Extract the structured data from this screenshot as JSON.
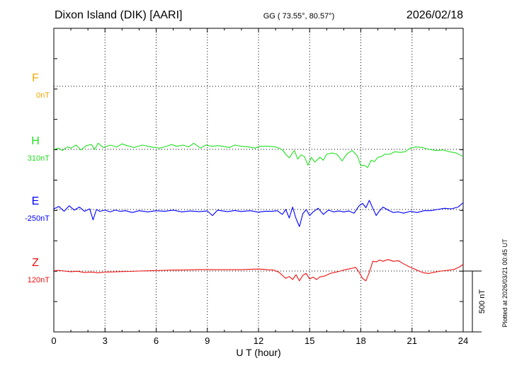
{
  "header": {
    "station": "Dixon Island (DIK)  [AARI]",
    "coords": "GG ( 73.55°,  80.57°)",
    "date": "2026/02/18"
  },
  "footer": {
    "xlabel": "U T (hour)",
    "plotted": "Plotted at 2026/03/21 00:45 UT",
    "scale_label": "500 nT"
  },
  "chart_data": {
    "type": "line",
    "xlabel": "U T (hour)",
    "x_range": [
      0,
      24
    ],
    "x_ticks": [
      "0",
      "3",
      "6",
      "9",
      "12",
      "15",
      "18",
      "21",
      "24"
    ],
    "grid": true,
    "scale_bar_nT": 500,
    "series": [
      {
        "name": "F",
        "baseline_label": "0nT",
        "color": "#f0a800",
        "baseline_nT": 0,
        "x": [],
        "y": []
      },
      {
        "name": "H",
        "baseline_label": "310nT",
        "color": "#22e022",
        "baseline_nT": 310,
        "x": [
          0,
          0.3,
          0.5,
          0.8,
          1,
          1.3,
          1.6,
          1.9,
          2.2,
          2.4,
          2.6,
          2.9,
          3.3,
          3.7,
          4,
          4.3,
          4.7,
          5.2,
          5.7,
          6.2,
          6.5,
          6.9,
          7.2,
          7.6,
          7.9,
          8.2,
          8.6,
          8.9,
          9.3,
          9.6,
          9.9,
          10.3,
          10.6,
          11,
          11.4,
          11.8,
          12.1,
          12.6,
          13,
          13.2,
          13.4,
          13.6,
          13.8,
          14.1,
          14.3,
          14.5,
          14.7,
          14.9,
          15.1,
          15.3,
          15.6,
          15.8,
          16,
          16.3,
          16.6,
          16.9,
          17.2,
          17.5,
          17.8,
          18,
          18.2,
          18.4,
          18.6,
          18.8,
          19,
          19.2,
          19.4,
          19.7,
          20,
          20.3,
          20.6,
          20.9,
          21.2,
          21.6,
          22,
          22.4,
          22.8,
          23.2,
          23.6,
          24
        ],
        "y": [
          310,
          320,
          300,
          330,
          320,
          345,
          305,
          340,
          350,
          310,
          360,
          325,
          345,
          330,
          355,
          340,
          325,
          345,
          330,
          320,
          330,
          350,
          335,
          345,
          330,
          360,
          320,
          345,
          335,
          340,
          335,
          325,
          345,
          335,
          330,
          320,
          335,
          335,
          330,
          320,
          305,
          270,
          240,
          300,
          230,
          265,
          250,
          180,
          245,
          205,
          245,
          220,
          270,
          280,
          270,
          215,
          275,
          300,
          255,
          175,
          180,
          160,
          220,
          210,
          245,
          250,
          270,
          270,
          290,
          285,
          290,
          320,
          330,
          325,
          310,
          300,
          305,
          290,
          280,
          250
        ]
      },
      {
        "name": "E",
        "baseline_label": "-250nT",
        "color": "#0000ff",
        "baseline_nT": -250,
        "x": [
          0,
          0.3,
          0.6,
          0.9,
          1.2,
          1.5,
          1.8,
          2.1,
          2.3,
          2.5,
          2.7,
          3,
          3.3,
          3.6,
          3.9,
          4.2,
          4.6,
          5,
          5.5,
          6,
          6.5,
          7,
          7.5,
          8,
          8.5,
          9,
          9.3,
          9.6,
          9.9,
          10.2,
          10.6,
          11,
          11.5,
          12,
          12.4,
          12.8,
          13.1,
          13.4,
          13.6,
          13.8,
          14,
          14.2,
          14.4,
          14.6,
          14.8,
          15,
          15.2,
          15.5,
          15.8,
          16.1,
          16.4,
          16.7,
          17,
          17.3,
          17.6,
          17.9,
          18.1,
          18.3,
          18.5,
          18.7,
          18.9,
          19.1,
          19.3,
          19.6,
          19.9,
          20.2,
          20.5,
          20.9,
          21.3,
          21.7,
          22.1,
          22.5,
          22.9,
          23.3,
          23.7,
          24
        ],
        "y": [
          -245,
          -225,
          -265,
          -220,
          -255,
          -230,
          -265,
          -245,
          -335,
          -250,
          -265,
          -255,
          -270,
          -255,
          -265,
          -260,
          -275,
          -260,
          -270,
          -260,
          -265,
          -255,
          -270,
          -262,
          -268,
          -262,
          -300,
          -255,
          -262,
          -268,
          -258,
          -266,
          -260,
          -272,
          -264,
          -265,
          -260,
          -290,
          -250,
          -320,
          -230,
          -325,
          -390,
          -285,
          -250,
          -300,
          -270,
          -240,
          -290,
          -255,
          -270,
          -262,
          -270,
          -262,
          -280,
          -220,
          -200,
          -235,
          -175,
          -240,
          -300,
          -260,
          -230,
          -255,
          -275,
          -270,
          -280,
          -265,
          -275,
          -260,
          -260,
          -250,
          -240,
          -245,
          -230,
          -195
        ]
      },
      {
        "name": "Z",
        "baseline_label": "120nT",
        "color": "#ee1111",
        "baseline_nT": 120,
        "x": [
          0,
          0.3,
          0.6,
          1,
          1.4,
          1.8,
          2.2,
          2.6,
          3,
          3.5,
          4,
          4.5,
          5,
          5.5,
          6,
          6.5,
          7,
          7.5,
          8,
          8.5,
          9,
          9.5,
          10,
          10.5,
          11,
          11.5,
          12,
          12.3,
          12.6,
          12.9,
          13.2,
          13.4,
          13.6,
          13.8,
          14,
          14.2,
          14.4,
          14.6,
          14.8,
          15,
          15.2,
          15.4,
          15.6,
          15.9,
          16.2,
          16.5,
          16.8,
          17.1,
          17.4,
          17.7,
          17.9,
          18.1,
          18.3,
          18.5,
          18.7,
          18.9,
          19.1,
          19.3,
          19.6,
          19.9,
          20.2,
          20.5,
          20.8,
          21.1,
          21.4,
          21.7,
          22,
          22.3,
          22.7,
          23.1,
          23.5,
          23.8,
          24
        ],
        "y": [
          123,
          125,
          120,
          115,
          118,
          108,
          112,
          106,
          112,
          113,
          116,
          117,
          120,
          122,
          124,
          126,
          128,
          128,
          130,
          132,
          132,
          131,
          131,
          131,
          131,
          134,
          136,
          134,
          130,
          128,
          110,
          85,
          60,
          75,
          50,
          90,
          40,
          85,
          100,
          55,
          70,
          50,
          72,
          80,
          100,
          110,
          120,
          132,
          140,
          150,
          110,
          60,
          40,
          110,
          200,
          195,
          210,
          200,
          215,
          200,
          205,
          180,
          158,
          140,
          120,
          105,
          100,
          110,
          120,
          125,
          135,
          155,
          175
        ]
      }
    ]
  }
}
